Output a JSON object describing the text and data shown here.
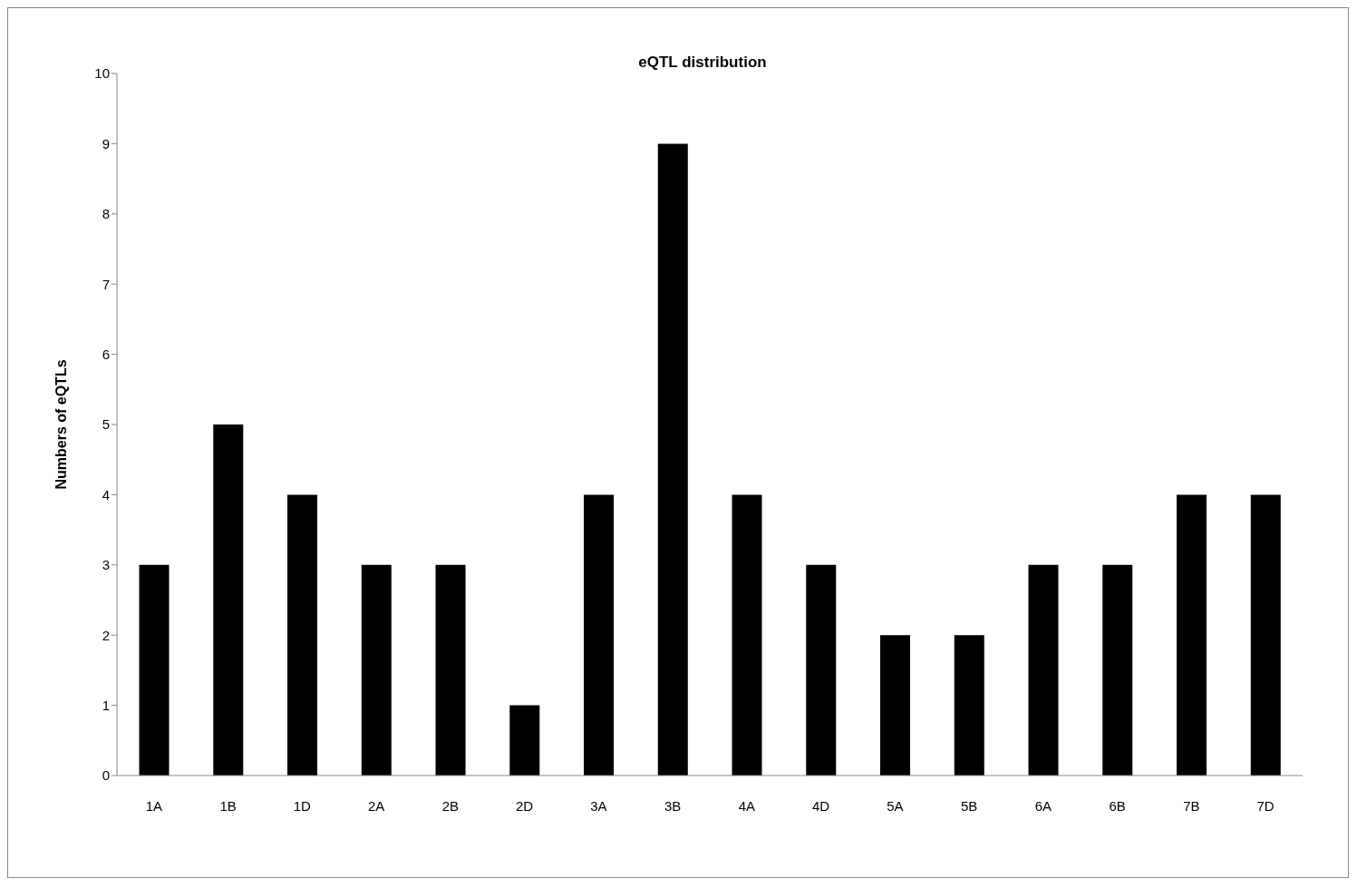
{
  "chart_data": {
    "type": "bar",
    "title": "eQTL distribution",
    "ylabel": "Numbers of eQTLs",
    "categories": [
      "1A",
      "1B",
      "1D",
      "2A",
      "2B",
      "2D",
      "3A",
      "3B",
      "4A",
      "4D",
      "5A",
      "5B",
      "6A",
      "6B",
      "7B",
      "7D"
    ],
    "values": [
      3,
      5,
      4,
      3,
      3,
      1,
      4,
      9,
      4,
      3,
      2,
      2,
      3,
      3,
      4,
      4
    ],
    "color": "#000000",
    "ylim": [
      0,
      10
    ],
    "yticks": [
      0,
      1,
      2,
      3,
      4,
      5,
      6,
      7,
      8,
      9,
      10
    ],
    "grid": false,
    "legend": false
  }
}
